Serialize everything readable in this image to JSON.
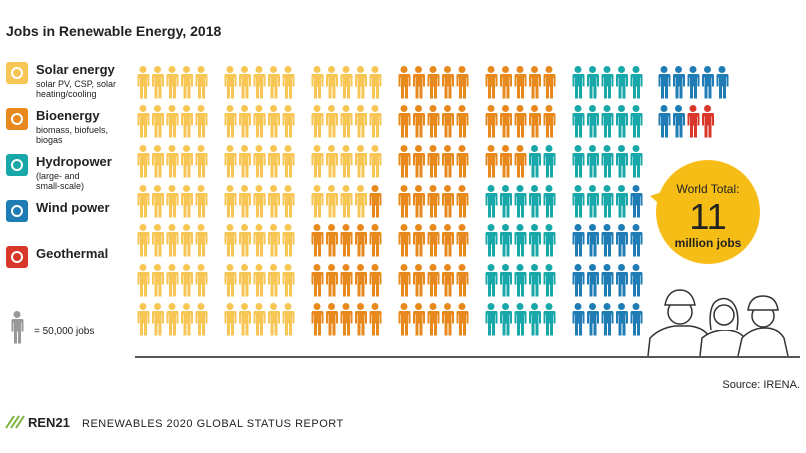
{
  "chart_data": {
    "type": "pictogram",
    "title": "Jobs in Renewable Energy, 2018",
    "unit_label": "= 50,000 jobs",
    "series": [
      {
        "name": "Solar energy",
        "description": [
          "solar PV, CSP, solar",
          "heating/cooling"
        ],
        "color": "#f7c654",
        "values": [
          89
        ]
      },
      {
        "name": "Bioenergy",
        "description": [
          "biomass, biofuels,",
          "biogas"
        ],
        "color": "#e8891d",
        "values": [
          64
        ]
      },
      {
        "name": "Hydropower",
        "description": [
          "(large- and",
          "small-scale)"
        ],
        "color": "#19a8a9",
        "values": [
          41
        ]
      },
      {
        "name": "Wind power",
        "description": [],
        "color": "#1f7cb4",
        "values": [
          23
        ]
      },
      {
        "name": "Geothermal",
        "description": [],
        "color": "#d8372a",
        "values": [
          2
        ]
      }
    ],
    "callout": {
      "label": "World Total:",
      "value": 11,
      "unit": "million jobs"
    },
    "source": "Source: IRENA.",
    "footer": {
      "brand": "REN21",
      "report": "RENEWABLES 2020 GLOBAL STATUS REPORT"
    }
  }
}
